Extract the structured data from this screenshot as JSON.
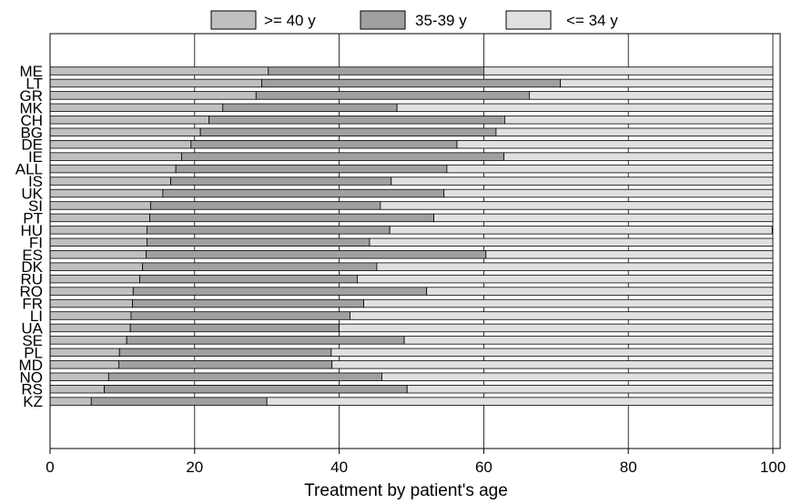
{
  "chart_data": {
    "type": "bar",
    "orientation": "horizontal",
    "stacked": true,
    "xlabel": "Treatment by patient's age",
    "ylabel": "",
    "xlim": [
      0,
      102
    ],
    "xticks": [
      "0",
      "20",
      "40",
      "60",
      "80",
      "100"
    ],
    "grid": "vertical gridlines at 20, 40, 60, 80, 100",
    "legend_placement": "top",
    "categories": [
      "ME",
      "LT",
      "GR",
      "MK",
      "CH",
      "BG",
      "DE",
      "IE",
      "ALL",
      "IS",
      "UK",
      "SI",
      "PT",
      "HU",
      "FI",
      "ES",
      "DK",
      "RU",
      "RO",
      "FR",
      "LI",
      "UA",
      "SE",
      "PL",
      "MD",
      "NO",
      "RS",
      "KZ"
    ],
    "series": [
      {
        "name": ">= 40 y",
        "color": "#c0c0c0",
        "values": [
          30.2,
          29.3,
          28.5,
          23.9,
          22.0,
          20.8,
          19.5,
          18.2,
          17.4,
          16.7,
          15.6,
          13.9,
          13.8,
          13.4,
          13.4,
          13.3,
          12.8,
          12.4,
          11.5,
          11.4,
          11.2,
          11.1,
          10.6,
          9.6,
          9.5,
          8.1,
          7.5,
          5.7
        ]
      },
      {
        "name": "35-39 y",
        "color": "#a0a0a0",
        "values": [
          29.8,
          41.3,
          37.8,
          24.1,
          40.9,
          40.9,
          36.8,
          44.6,
          37.5,
          30.5,
          38.9,
          31.8,
          39.3,
          33.6,
          30.8,
          47.0,
          32.4,
          30.1,
          40.6,
          32.0,
          30.3,
          28.9,
          38.4,
          29.3,
          29.5,
          37.8,
          41.9,
          24.3
        ]
      },
      {
        "name": "<= 34 y",
        "color": "#e0e0e0",
        "values": [
          40.0,
          29.4,
          33.7,
          52.0,
          37.1,
          38.3,
          43.7,
          37.2,
          45.1,
          52.8,
          45.5,
          54.3,
          46.9,
          52.9,
          55.8,
          39.7,
          54.8,
          57.5,
          47.9,
          56.6,
          58.5,
          60.0,
          51.0,
          61.1,
          61.0,
          54.1,
          50.6,
          70.0
        ]
      }
    ]
  }
}
